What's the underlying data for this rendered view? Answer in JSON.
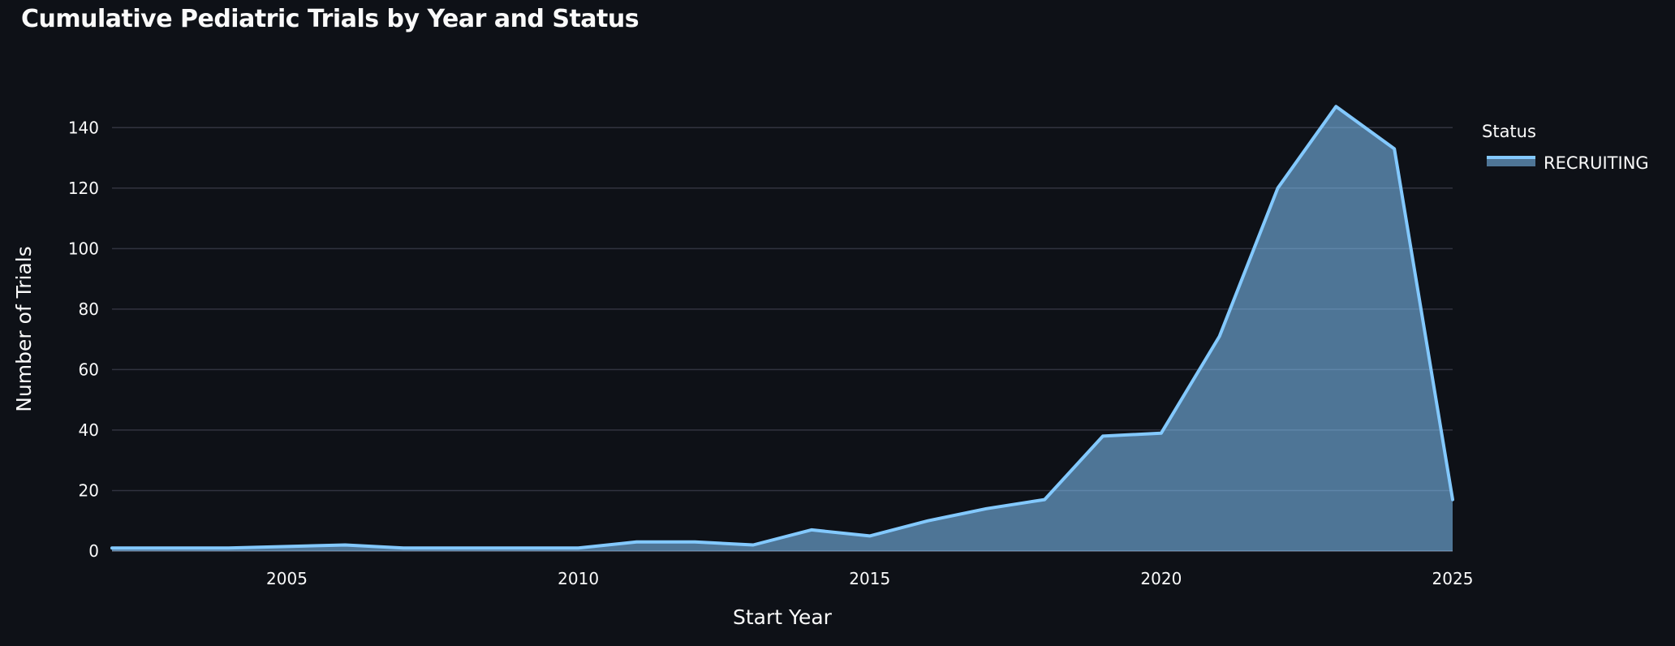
{
  "chart_data": {
    "type": "area",
    "title": "Cumulative Pediatric Trials by Year and Status",
    "xlabel": "Start Year",
    "ylabel": "Number of Trials",
    "xlim": [
      2002,
      2025
    ],
    "ylim": [
      0,
      150
    ],
    "xticks": [
      2005,
      2010,
      2015,
      2020,
      2025
    ],
    "yticks": [
      0,
      20,
      40,
      60,
      80,
      100,
      120,
      140
    ],
    "grid": "horizontal",
    "legend": {
      "title": "Status",
      "placement": "top-right"
    },
    "x": [
      2002,
      2003,
      2004,
      2005,
      2006,
      2007,
      2008,
      2009,
      2010,
      2011,
      2012,
      2013,
      2014,
      2015,
      2016,
      2017,
      2018,
      2019,
      2020,
      2021,
      2022,
      2023,
      2024,
      2025
    ],
    "series": [
      {
        "name": "RECRUITING",
        "values": [
          1,
          1,
          1,
          1.5,
          2,
          1,
          1,
          1,
          1,
          3,
          3,
          2,
          7,
          5,
          10,
          14,
          17,
          38,
          39,
          71,
          120,
          147,
          133,
          17
        ],
        "line_color": "#83c9ff",
        "fill_color": "#83c9ff",
        "fill_opacity": 0.55
      }
    ]
  },
  "colors": {
    "background": "#0e1117",
    "gridline": "#31333f",
    "text": "#fafafa"
  }
}
